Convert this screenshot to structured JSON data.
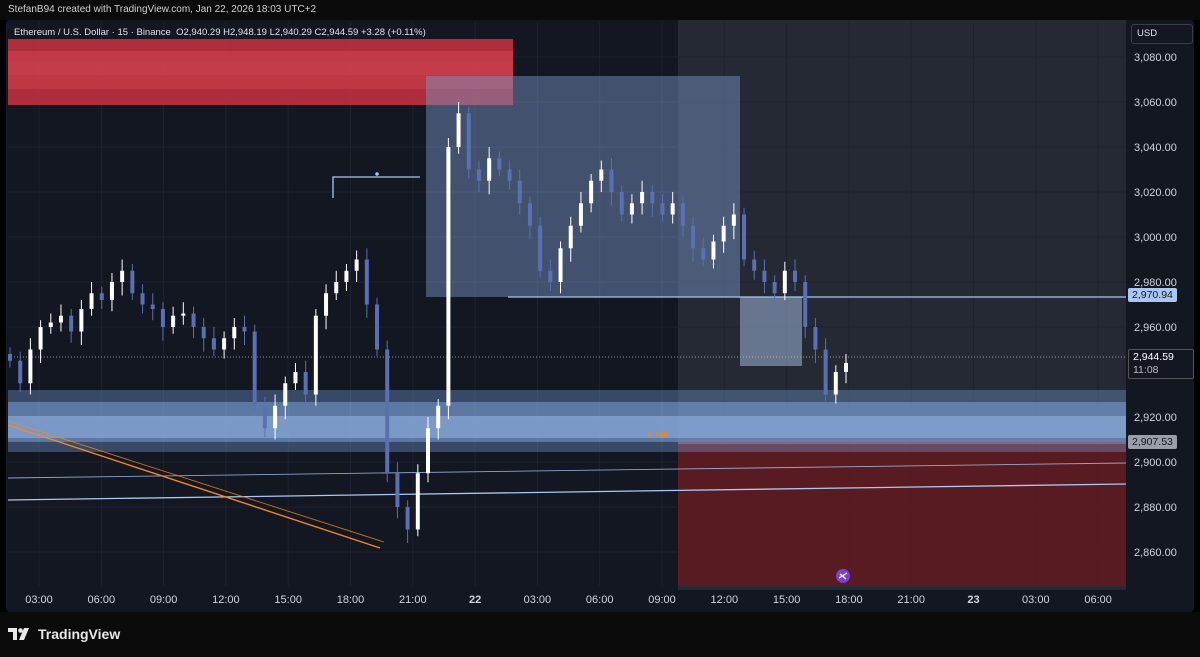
{
  "header": {
    "attribution": "StefanB94 created with TradingView.com, Jan 22, 2026 18:03 UTC+2"
  },
  "legend": {
    "symbol": "Ethereum / U.S. Dollar · 15 · Binance",
    "ohlc": "O2,940.29  H2,948.19  L2,940.29  C2,944.59  +3.28 (+0.11%)"
  },
  "currency_button": "USD",
  "brand": "TradingView",
  "price_badges": {
    "level_upper": "2,970.94",
    "current": "2,944.59",
    "countdown": "11:08",
    "level_lower": "2,907.53"
  },
  "annotation_fib": "0.786",
  "colors": {
    "background": "#131722",
    "candle_up": "#ffffff",
    "candle_down": "#5b6fb3",
    "supply_zone": "#c9313f",
    "demand_zone": "#7aa5e6",
    "range_box": "#5e7aa6",
    "lower_box": "#5c1a22",
    "trendline": "#f5891f",
    "level_line": "#a9c7f2"
  },
  "chart_data": {
    "type": "candlestick",
    "ylim": [
      2845,
      3090
    ],
    "y_ticks": [
      "3,080.00",
      "3,060.00",
      "3,040.00",
      "3,020.00",
      "3,000.00",
      "2,980.00",
      "2,960.00",
      "2,920.00",
      "2,900.00",
      "2,880.00",
      "2,860.00"
    ],
    "x_ticks": [
      "03:00",
      "06:00",
      "09:00",
      "12:00",
      "15:00",
      "18:00",
      "21:00",
      "22",
      "03:00",
      "06:00",
      "09:00",
      "12:00",
      "15:00",
      "18:00",
      "21:00",
      "23",
      "03:00",
      "06:00"
    ],
    "bold_ticks": [
      "22",
      "23"
    ],
    "last_price": 2944.59,
    "levels": [
      2970.94,
      2907.53
    ],
    "candles_close_estimate": [
      2945,
      2935,
      2950,
      2960,
      2962,
      2965,
      2958,
      2968,
      2975,
      2972,
      2980,
      2985,
      2975,
      2970,
      2968,
      2960,
      2965,
      2966,
      2960,
      2955,
      2950,
      2955,
      2960,
      2958,
      2925,
      2915,
      2925,
      2935,
      2940,
      2930,
      2965,
      2975,
      2980,
      2985,
      2990,
      2970,
      2950,
      2895,
      2880,
      2870,
      2895,
      2915,
      2925,
      3040,
      3055,
      3030,
      3025,
      3035,
      3030,
      3025,
      3015,
      3005,
      2985,
      2980,
      2995,
      3005,
      3015,
      3025,
      3030,
      3020,
      3010,
      3015,
      3020,
      3015,
      3010,
      3015,
      3005,
      2995,
      2990,
      2998,
      3005,
      3010,
      2990,
      2985,
      2980,
      2975,
      2985,
      2980,
      2960,
      2950,
      2930,
      2940,
      2944
    ]
  }
}
